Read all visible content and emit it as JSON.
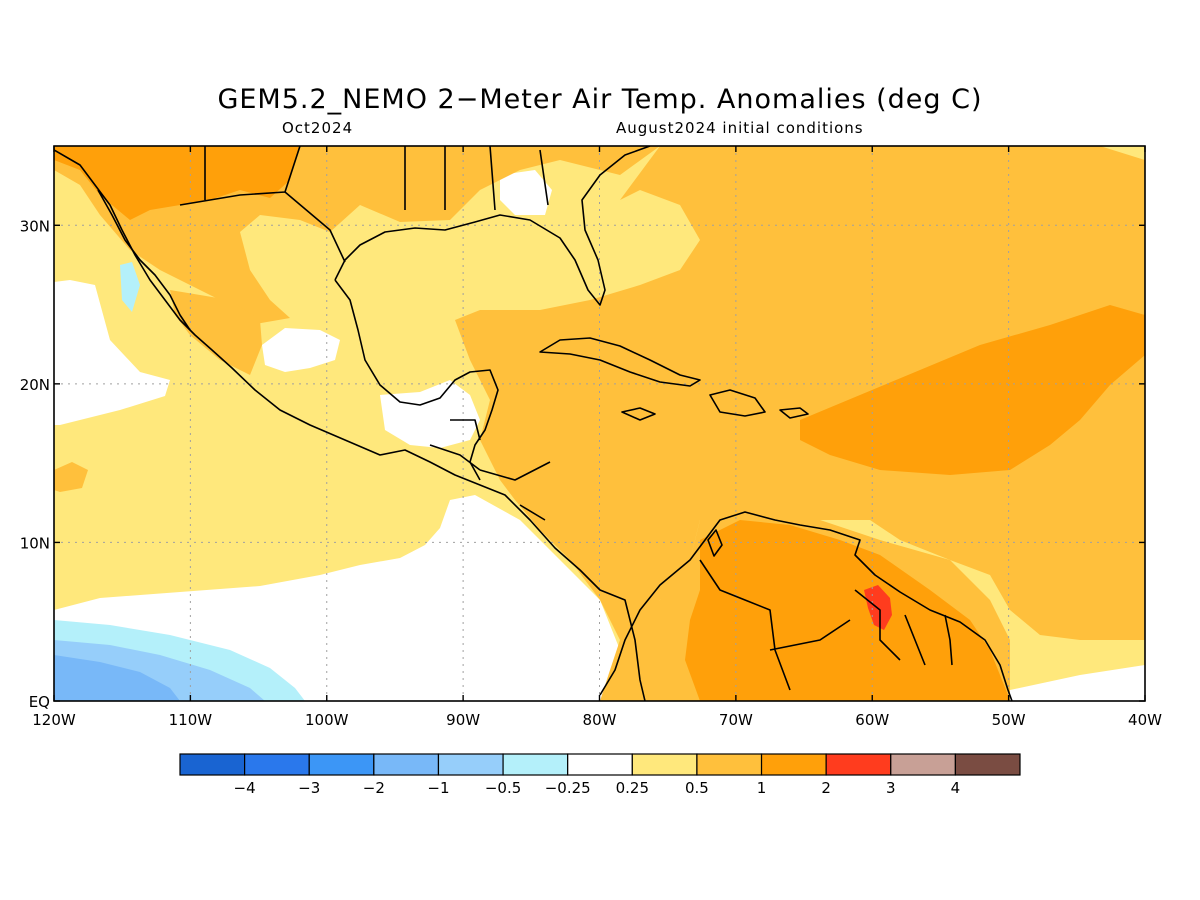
{
  "title": "GEM5.2_NEMO 2−Meter Air Temp. Anomalies (deg C)",
  "subtitle_left": "Oct2024",
  "subtitle_right": "August2024 initial conditions",
  "map": {
    "lon_range": [
      -120,
      -40
    ],
    "lat_range": [
      0,
      35
    ],
    "lon_ticks": [
      {
        "v": -120,
        "label": "120W"
      },
      {
        "v": -110,
        "label": "110W"
      },
      {
        "v": -100,
        "label": "100W"
      },
      {
        "v": -90,
        "label": "90W"
      },
      {
        "v": -80,
        "label": "80W"
      },
      {
        "v": -70,
        "label": "70W"
      },
      {
        "v": -60,
        "label": "60W"
      },
      {
        "v": -50,
        "label": "50W"
      },
      {
        "v": -40,
        "label": "40W"
      }
    ],
    "lat_ticks": [
      {
        "v": 0,
        "label": "EQ"
      },
      {
        "v": 10,
        "label": "10N"
      },
      {
        "v": 20,
        "label": "20N"
      },
      {
        "v": 30,
        "label": "30N"
      }
    ],
    "gridlines": true
  },
  "colorbar": {
    "colors": [
      "#1964d2",
      "#2a78ec",
      "#3c96f6",
      "#78b8f8",
      "#96cefa",
      "#b4f0fa",
      "#ffffff",
      "#ffe87c",
      "#ffc03c",
      "#ffa00a",
      "#ff3c1e",
      "#c8a096",
      "#7a4c42"
    ],
    "labels": [
      "−4",
      "−3",
      "−2",
      "−1",
      "−0.5",
      "−0.25",
      "0.25",
      "0.5",
      "1",
      "2",
      "3",
      "4"
    ]
  }
}
